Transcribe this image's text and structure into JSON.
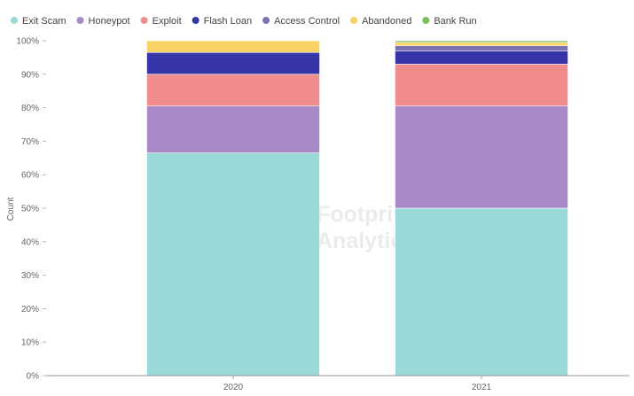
{
  "chart_data": {
    "type": "bar",
    "stacked": true,
    "normalized": true,
    "categories": [
      "2020",
      "2021"
    ],
    "ylabel": "Count",
    "ylim": [
      0,
      100
    ],
    "y_ticks": [
      "0%",
      "10%",
      "20%",
      "30%",
      "40%",
      "50%",
      "60%",
      "70%",
      "80%",
      "90%",
      "100%"
    ],
    "grid": false,
    "legend_position": "top-left",
    "series": [
      {
        "name": "Exit Scam",
        "color": "#9ad9d8",
        "values": [
          66.5,
          50.0
        ]
      },
      {
        "name": "Honeypot",
        "color": "#a98ac8",
        "values": [
          14.0,
          30.5
        ]
      },
      {
        "name": "Exploit",
        "color": "#f08c8c",
        "values": [
          9.5,
          12.5
        ]
      },
      {
        "name": "Flash Loan",
        "color": "#3535a8",
        "values": [
          6.5,
          4.0
        ]
      },
      {
        "name": "Access Control",
        "color": "#7b72b4",
        "values": [
          0.0,
          1.5
        ]
      },
      {
        "name": "Abandoned",
        "color": "#f8d265",
        "values": [
          3.5,
          1.0
        ]
      },
      {
        "name": "Bank Run",
        "color": "#79bf5a",
        "values": [
          0.0,
          0.5
        ]
      }
    ]
  },
  "watermark": {
    "line1": "Footprint",
    "line2": "Analytics"
  }
}
